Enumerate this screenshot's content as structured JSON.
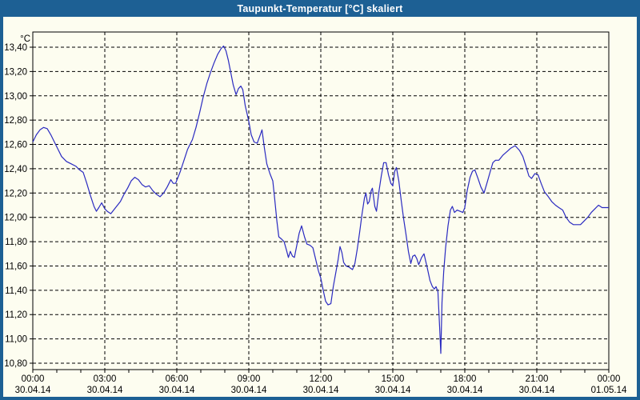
{
  "window": {
    "title": "Taupunkt-Temperatur [°C] skaliert"
  },
  "colors": {
    "frame": "#1d6094",
    "background": "#fdfdf0",
    "line": "#2a2ac0",
    "grid": "#000000",
    "text": "#000000",
    "title_text": "#ffffff"
  },
  "chart_data": {
    "type": "line",
    "title": "Taupunkt-Temperatur [°C] skaliert",
    "y_unit_label": "°C",
    "ylim": [
      10.8,
      13.4
    ],
    "ytick_step": 0.2,
    "ytick_labels": [
      "13,40",
      "13,20",
      "13,00",
      "12,80",
      "12,60",
      "12,40",
      "12,20",
      "12,00",
      "11,80",
      "11,60",
      "11,40",
      "11,20",
      "11,00",
      "10,80"
    ],
    "x_hours_range": [
      0,
      24
    ],
    "minor_xtick_every_hours": 1,
    "grid": true,
    "legend": "none",
    "xticks": [
      {
        "hour": 0,
        "time": "00:00",
        "date": "30.04.14"
      },
      {
        "hour": 3,
        "time": "03:00",
        "date": "30.04.14"
      },
      {
        "hour": 6,
        "time": "06:00",
        "date": "30.04.14"
      },
      {
        "hour": 9,
        "time": "09:00",
        "date": "30.04.14"
      },
      {
        "hour": 12,
        "time": "12:00",
        "date": "30.04.14"
      },
      {
        "hour": 15,
        "time": "15:00",
        "date": "30.04.14"
      },
      {
        "hour": 18,
        "time": "18:00",
        "date": "30.04.14"
      },
      {
        "hour": 21,
        "time": "21:00",
        "date": "30.04.14"
      },
      {
        "hour": 24,
        "time": "00:00",
        "date": "01.05.14"
      }
    ],
    "series": [
      {
        "name": "Taupunkt-Temperatur",
        "color": "#2a2ac0",
        "points": [
          [
            0.0,
            12.62
          ],
          [
            0.15,
            12.68
          ],
          [
            0.3,
            12.72
          ],
          [
            0.45,
            12.74
          ],
          [
            0.6,
            12.73
          ],
          [
            0.75,
            12.68
          ],
          [
            0.9,
            12.62
          ],
          [
            1.05,
            12.56
          ],
          [
            1.2,
            12.5
          ],
          [
            1.4,
            12.46
          ],
          [
            1.6,
            12.44
          ],
          [
            1.8,
            12.42
          ],
          [
            1.95,
            12.39
          ],
          [
            2.1,
            12.37
          ],
          [
            2.25,
            12.28
          ],
          [
            2.4,
            12.18
          ],
          [
            2.55,
            12.09
          ],
          [
            2.65,
            12.05
          ],
          [
            2.75,
            12.08
          ],
          [
            2.87,
            12.12
          ],
          [
            3.0,
            12.07
          ],
          [
            3.1,
            12.05
          ],
          [
            3.25,
            12.03
          ],
          [
            3.45,
            12.08
          ],
          [
            3.65,
            12.13
          ],
          [
            3.8,
            12.19
          ],
          [
            3.95,
            12.24
          ],
          [
            4.1,
            12.3
          ],
          [
            4.25,
            12.33
          ],
          [
            4.4,
            12.31
          ],
          [
            4.55,
            12.27
          ],
          [
            4.7,
            12.25
          ],
          [
            4.85,
            12.26
          ],
          [
            5.0,
            12.22
          ],
          [
            5.15,
            12.19
          ],
          [
            5.3,
            12.17
          ],
          [
            5.45,
            12.2
          ],
          [
            5.6,
            12.25
          ],
          [
            5.75,
            12.31
          ],
          [
            5.85,
            12.28
          ],
          [
            5.95,
            12.28
          ],
          [
            6.05,
            12.33
          ],
          [
            6.15,
            12.38
          ],
          [
            6.3,
            12.47
          ],
          [
            6.45,
            12.56
          ],
          [
            6.55,
            12.6
          ],
          [
            6.65,
            12.64
          ],
          [
            6.8,
            12.74
          ],
          [
            6.95,
            12.86
          ],
          [
            7.1,
            12.99
          ],
          [
            7.25,
            13.1
          ],
          [
            7.4,
            13.19
          ],
          [
            7.55,
            13.27
          ],
          [
            7.7,
            13.34
          ],
          [
            7.85,
            13.39
          ],
          [
            7.95,
            13.41
          ],
          [
            8.05,
            13.37
          ],
          [
            8.15,
            13.29
          ],
          [
            8.25,
            13.19
          ],
          [
            8.35,
            13.09
          ],
          [
            8.47,
            13.01
          ],
          [
            8.57,
            13.06
          ],
          [
            8.67,
            13.08
          ],
          [
            8.75,
            13.05
          ],
          [
            8.85,
            12.92
          ],
          [
            9.0,
            12.79
          ],
          [
            9.1,
            12.68
          ],
          [
            9.22,
            12.62
          ],
          [
            9.35,
            12.61
          ],
          [
            9.48,
            12.68
          ],
          [
            9.55,
            12.72
          ],
          [
            9.65,
            12.57
          ],
          [
            9.75,
            12.44
          ],
          [
            9.88,
            12.36
          ],
          [
            10.0,
            12.3
          ],
          [
            10.08,
            12.15
          ],
          [
            10.17,
            11.97
          ],
          [
            10.25,
            11.84
          ],
          [
            10.37,
            11.82
          ],
          [
            10.47,
            11.8
          ],
          [
            10.57,
            11.73
          ],
          [
            10.65,
            11.67
          ],
          [
            10.73,
            11.72
          ],
          [
            10.82,
            11.68
          ],
          [
            10.9,
            11.67
          ],
          [
            11.0,
            11.77
          ],
          [
            11.1,
            11.87
          ],
          [
            11.2,
            11.93
          ],
          [
            11.32,
            11.84
          ],
          [
            11.42,
            11.78
          ],
          [
            11.55,
            11.77
          ],
          [
            11.67,
            11.75
          ],
          [
            11.78,
            11.66
          ],
          [
            11.9,
            11.56
          ],
          [
            12.0,
            11.5
          ],
          [
            12.1,
            11.4
          ],
          [
            12.2,
            11.31
          ],
          [
            12.3,
            11.28
          ],
          [
            12.42,
            11.29
          ],
          [
            12.52,
            11.43
          ],
          [
            12.62,
            11.54
          ],
          [
            12.72,
            11.65
          ],
          [
            12.8,
            11.76
          ],
          [
            12.88,
            11.71
          ],
          [
            12.95,
            11.63
          ],
          [
            13.05,
            11.6
          ],
          [
            13.18,
            11.59
          ],
          [
            13.32,
            11.57
          ],
          [
            13.42,
            11.62
          ],
          [
            13.52,
            11.74
          ],
          [
            13.62,
            11.88
          ],
          [
            13.72,
            12.03
          ],
          [
            13.82,
            12.16
          ],
          [
            13.88,
            12.2
          ],
          [
            13.95,
            12.11
          ],
          [
            14.02,
            12.13
          ],
          [
            14.1,
            12.22
          ],
          [
            14.15,
            12.24
          ],
          [
            14.25,
            12.09
          ],
          [
            14.32,
            12.05
          ],
          [
            14.42,
            12.21
          ],
          [
            14.52,
            12.34
          ],
          [
            14.62,
            12.45
          ],
          [
            14.72,
            12.45
          ],
          [
            14.82,
            12.35
          ],
          [
            14.92,
            12.28
          ],
          [
            15.0,
            12.26
          ],
          [
            15.08,
            12.38
          ],
          [
            15.15,
            12.41
          ],
          [
            15.25,
            12.3
          ],
          [
            15.35,
            12.14
          ],
          [
            15.45,
            11.99
          ],
          [
            15.55,
            11.86
          ],
          [
            15.65,
            11.72
          ],
          [
            15.75,
            11.62
          ],
          [
            15.83,
            11.68
          ],
          [
            15.92,
            11.69
          ],
          [
            16.0,
            11.66
          ],
          [
            16.08,
            11.61
          ],
          [
            16.2,
            11.67
          ],
          [
            16.3,
            11.7
          ],
          [
            16.43,
            11.59
          ],
          [
            16.55,
            11.48
          ],
          [
            16.65,
            11.43
          ],
          [
            16.73,
            11.41
          ],
          [
            16.8,
            11.43
          ],
          [
            16.88,
            11.39
          ],
          [
            16.95,
            11.1
          ],
          [
            17.0,
            10.88
          ],
          [
            17.05,
            11.3
          ],
          [
            17.12,
            11.55
          ],
          [
            17.2,
            11.75
          ],
          [
            17.3,
            11.93
          ],
          [
            17.4,
            12.06
          ],
          [
            17.48,
            12.09
          ],
          [
            17.57,
            12.04
          ],
          [
            17.68,
            12.06
          ],
          [
            17.8,
            12.05
          ],
          [
            17.92,
            12.04
          ],
          [
            18.0,
            12.08
          ],
          [
            18.1,
            12.22
          ],
          [
            18.22,
            12.33
          ],
          [
            18.32,
            12.38
          ],
          [
            18.42,
            12.39
          ],
          [
            18.55,
            12.32
          ],
          [
            18.67,
            12.25
          ],
          [
            18.8,
            12.2
          ],
          [
            18.92,
            12.28
          ],
          [
            19.05,
            12.37
          ],
          [
            19.17,
            12.45
          ],
          [
            19.28,
            12.47
          ],
          [
            19.42,
            12.47
          ],
          [
            19.58,
            12.51
          ],
          [
            19.75,
            12.54
          ],
          [
            19.92,
            12.57
          ],
          [
            20.1,
            12.59
          ],
          [
            20.28,
            12.55
          ],
          [
            20.42,
            12.5
          ],
          [
            20.55,
            12.42
          ],
          [
            20.67,
            12.34
          ],
          [
            20.78,
            12.32
          ],
          [
            20.92,
            12.36
          ],
          [
            21.05,
            12.35
          ],
          [
            21.18,
            12.28
          ],
          [
            21.32,
            12.21
          ],
          [
            21.48,
            12.17
          ],
          [
            21.62,
            12.13
          ],
          [
            21.78,
            12.1
          ],
          [
            21.92,
            12.08
          ],
          [
            22.08,
            12.06
          ],
          [
            22.22,
            12.0
          ],
          [
            22.37,
            11.96
          ],
          [
            22.52,
            11.94
          ],
          [
            22.67,
            11.94
          ],
          [
            22.82,
            11.94
          ],
          [
            22.97,
            11.97
          ],
          [
            23.12,
            12.0
          ],
          [
            23.27,
            12.04
          ],
          [
            23.42,
            12.07
          ],
          [
            23.57,
            12.1
          ],
          [
            23.72,
            12.08
          ],
          [
            23.87,
            12.08
          ],
          [
            24.0,
            12.08
          ]
        ]
      }
    ]
  }
}
